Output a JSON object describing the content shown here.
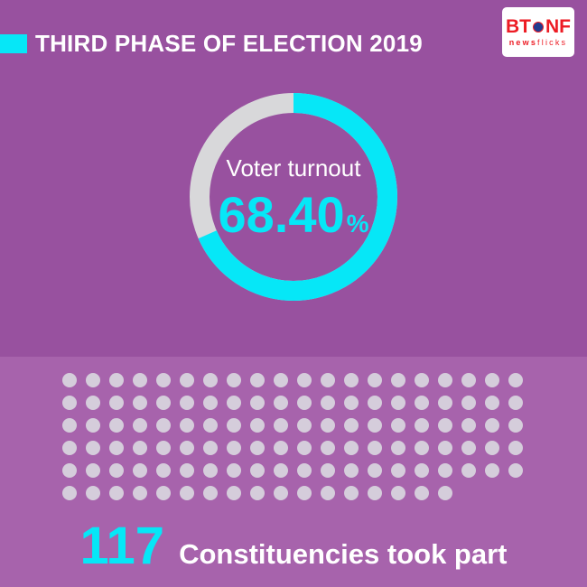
{
  "colors": {
    "bg_top": "#98519F",
    "bg_bottom": "#A763AC",
    "accent": "#06E7F7",
    "ring_rest": "#D8D8DA",
    "dot": "#D5CDDB",
    "logo_red": "#ED1C24",
    "text": "#FFFFFF"
  },
  "header": {
    "title": "THIRD PHASE OF ELECTION 2019",
    "logo": {
      "bt": "BT",
      "nf": "NF",
      "sub_bold": "news",
      "sub_light": "flicks"
    }
  },
  "chart_data": [
    {
      "type": "pie",
      "style": "donut",
      "label": "Voter turnout",
      "value": 68.4,
      "value_display": "68.40",
      "unit": "%",
      "remainder": 31.6,
      "start_angle": "top",
      "direction": "clockwise",
      "value_color": "#06E7F7",
      "remainder_color": "#D8D8DA"
    },
    {
      "type": "pictograph",
      "total_dots": 117,
      "dots_per_row": 20,
      "rows": 6,
      "last_row_dots": 17,
      "count_display": "117",
      "label": "Constituencies took part",
      "dot_color": "#D5CDDB"
    }
  ]
}
